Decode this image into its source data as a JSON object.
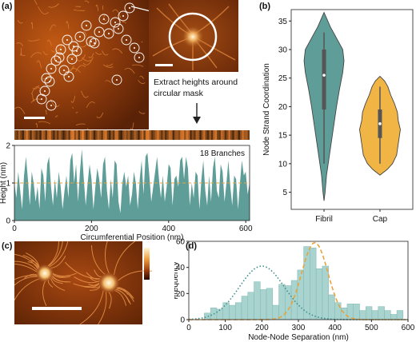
{
  "panels": {
    "a": {
      "label": "(a)",
      "annotation": "Extract heights around circular mask"
    },
    "b": {
      "label": "(b)"
    },
    "c": {
      "label": "(c)"
    },
    "d": {
      "label": "(d)"
    }
  },
  "colors": {
    "teal": "#5f9e98",
    "orange": "#f0b545",
    "dash_orange": "#e8a33c",
    "dot_teal": "#3e8f8a"
  },
  "chart_data": [
    {
      "panel": "a",
      "type": "area",
      "title": "",
      "annotation": "18 Branches",
      "xlabel": "Circumferential Position (nm)",
      "ylabel": "Height (nm)",
      "xlim": [
        0,
        610
      ],
      "ylim": [
        0,
        2
      ],
      "xticks": [
        0,
        200,
        400,
        600
      ],
      "yticks": [
        0,
        1,
        2
      ],
      "reference_line": 1.0,
      "x": [
        0,
        5,
        10,
        15,
        20,
        25,
        30,
        35,
        40,
        45,
        50,
        55,
        60,
        65,
        70,
        75,
        80,
        85,
        90,
        95,
        100,
        105,
        110,
        115,
        120,
        125,
        130,
        135,
        140,
        145,
        150,
        155,
        160,
        165,
        170,
        175,
        180,
        185,
        190,
        195,
        200,
        205,
        210,
        215,
        220,
        225,
        230,
        235,
        240,
        245,
        250,
        255,
        260,
        265,
        270,
        275,
        280,
        285,
        290,
        295,
        300,
        305,
        310,
        315,
        320,
        325,
        330,
        335,
        340,
        345,
        350,
        355,
        360,
        365,
        370,
        375,
        380,
        385,
        390,
        395,
        400,
        405,
        410,
        415,
        420,
        425,
        430,
        435,
        440,
        445,
        450,
        455,
        460,
        465,
        470,
        475,
        480,
        485,
        490,
        495,
        500,
        505,
        510,
        515,
        520,
        525,
        530,
        535,
        540,
        545,
        550,
        555,
        560,
        565,
        570,
        575,
        580,
        585,
        590,
        595,
        600,
        605,
        610
      ],
      "y": [
        1.0,
        0.6,
        1.3,
        0.8,
        0.3,
        1.2,
        1.7,
        1.1,
        0.4,
        1.3,
        1.0,
        0.5,
        0.9,
        0.3,
        1.4,
        1.2,
        0.5,
        1.5,
        1.7,
        0.9,
        0.4,
        1.1,
        0.6,
        1.3,
        0.9,
        0.3,
        0.8,
        1.2,
        0.6,
        1.6,
        1.8,
        1.0,
        1.5,
        0.5,
        1.3,
        1.9,
        1.1,
        0.4,
        1.0,
        1.5,
        1.1,
        0.3,
        0.9,
        1.4,
        1.1,
        0.6,
        1.5,
        1.7,
        0.8,
        0.3,
        1.1,
        0.6,
        1.6,
        1.5,
        0.5,
        0.2,
        1.0,
        1.3,
        0.9,
        1.2,
        0.4,
        0.7,
        1.3,
        1.0,
        0.3,
        1.1,
        1.6,
        0.7,
        1.7,
        1.8,
        1.2,
        0.5,
        0.9,
        1.3,
        1.7,
        1.1,
        0.6,
        1.2,
        0.5,
        0.9,
        1.5,
        1.4,
        0.4,
        1.1,
        1.2,
        0.9,
        1.6,
        1.7,
        1.1,
        1.7,
        1.4,
        0.4,
        1.0,
        0.6,
        1.3,
        1.2,
        0.3,
        1.1,
        1.6,
        0.8,
        0.4,
        1.2,
        0.5,
        1.4,
        1.7,
        0.8,
        0.6,
        1.5,
        1.3,
        0.5,
        1.0,
        1.6,
        0.9,
        0.4,
        1.2,
        1.1,
        0.3,
        1.0,
        1.6,
        1.2,
        1.3,
        0.7,
        1.0
      ]
    },
    {
      "panel": "b",
      "type": "violin",
      "ylabel": "Node Strand Coordination",
      "ylim": [
        2,
        37
      ],
      "yticks": [
        5,
        10,
        15,
        20,
        25,
        30,
        35
      ],
      "categories": [
        "Fibril",
        "Cap"
      ],
      "series": [
        {
          "category": "Fibril",
          "min": 3.5,
          "max": 36.5,
          "q1": 19.5,
          "median": 25.5,
          "q3": 30,
          "whisker_low": 10,
          "whisker_high": 33,
          "profile": [
            [
              3.5,
              0
            ],
            [
              5,
              0.05
            ],
            [
              8,
              0.12
            ],
            [
              11,
              0.24
            ],
            [
              14,
              0.36
            ],
            [
              17,
              0.48
            ],
            [
              20,
              0.6
            ],
            [
              23,
              0.74
            ],
            [
              26,
              0.9
            ],
            [
              28,
              0.96
            ],
            [
              30,
              0.9
            ],
            [
              32,
              0.6
            ],
            [
              34,
              0.3
            ],
            [
              35.5,
              0.12
            ],
            [
              36.5,
              0
            ]
          ]
        },
        {
          "category": "Cap",
          "min": 8,
          "max": 25.3,
          "q1": 14.5,
          "median": 17,
          "q3": 19.5,
          "whisker_low": 10,
          "whisker_high": 23.5,
          "profile": [
            [
              8,
              0
            ],
            [
              9,
              0.35
            ],
            [
              10,
              0.6
            ],
            [
              11.5,
              0.8
            ],
            [
              13,
              0.86
            ],
            [
              14.5,
              0.92
            ],
            [
              16,
              0.98
            ],
            [
              17.5,
              0.88
            ],
            [
              19,
              0.84
            ],
            [
              20.5,
              0.7
            ],
            [
              22,
              0.52
            ],
            [
              23.5,
              0.38
            ],
            [
              24.5,
              0.22
            ],
            [
              25.3,
              0
            ]
          ]
        }
      ]
    },
    {
      "panel": "d",
      "type": "bar",
      "xlabel": "Node-Node Separation (nm)",
      "ylabel": "Frequency",
      "xlim": [
        0,
        600
      ],
      "ylim": [
        0,
        60
      ],
      "xticks": [
        0,
        100,
        200,
        300,
        400,
        500,
        600
      ],
      "yticks": [
        0,
        20,
        40,
        60
      ],
      "bin_width": 17,
      "x": [
        51,
        68,
        85,
        102,
        119,
        136,
        153,
        170,
        187,
        204,
        221,
        238,
        255,
        272,
        289,
        306,
        323,
        340,
        357,
        374,
        391,
        408,
        425,
        442,
        459,
        476,
        493,
        510,
        527,
        544,
        561,
        578
      ],
      "values": [
        5,
        9,
        8,
        13,
        11,
        13,
        18,
        21,
        29,
        23,
        24,
        11,
        27,
        26,
        30,
        38,
        56,
        55,
        39,
        41,
        19,
        13,
        9,
        12,
        12,
        7,
        10,
        7,
        10,
        7,
        4,
        7
      ],
      "fits": [
        {
          "style": "dotted",
          "color": "#3e8f8a",
          "mu": 200,
          "sigma": 62,
          "amp": 41
        },
        {
          "style": "dashed",
          "color": "#e8a33c",
          "mu": 345,
          "sigma": 36,
          "amp": 59
        }
      ]
    }
  ]
}
